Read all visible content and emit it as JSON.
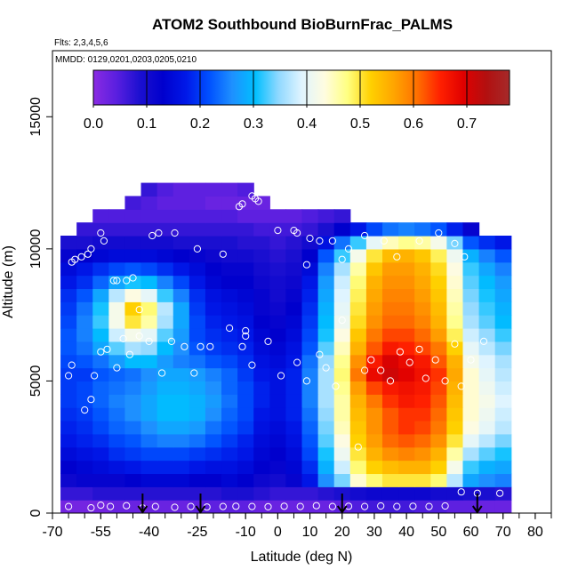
{
  "chart_data": {
    "type": "heatmap",
    "title": "ATOM2 Southbound BioBurnFrac_PALMS",
    "notes": [
      "Flts: 2,3,4,5,6",
      "MMDD: 0129,0201,0203,0205,0210"
    ],
    "xlabel": "Latitude (deg N)",
    "ylabel": "Altitude (m)",
    "xlim": [
      -70,
      85
    ],
    "ylim": [
      0,
      17500
    ],
    "x_ticks": [
      -70,
      -55,
      -40,
      -25,
      -10,
      0,
      10,
      20,
      30,
      40,
      50,
      60,
      70,
      80
    ],
    "y_ticks": [
      0,
      5000,
      10000,
      15000
    ],
    "colorbar": {
      "range": [
        0,
        0.78
      ],
      "ticks": [
        0.0,
        0.1,
        0.2,
        0.3,
        0.4,
        0.5,
        0.6,
        0.7
      ],
      "tick_labels": [
        "0.0",
        "0.1",
        "0.2",
        "0.3",
        "0.4",
        "0.5",
        "0.6",
        "0.7"
      ],
      "colors": [
        "#8a2be2",
        "#5a1fe0",
        "#1c10d0",
        "#0000cd",
        "#0018e8",
        "#0050ff",
        "#1e90ff",
        "#00bfff",
        "#8fd8ff",
        "#dff4ff",
        "#fffce0",
        "#ffff80",
        "#ffd000",
        "#ffa500",
        "#ff7000",
        "#ff2000",
        "#e00000",
        "#b21010",
        "#a52a2a"
      ]
    },
    "lat_grid": [
      -65,
      -60,
      -55,
      -50,
      -45,
      -40,
      -35,
      -30,
      -25,
      -20,
      -15,
      -10,
      -5,
      0,
      5,
      10,
      15,
      20,
      25,
      30,
      35,
      40,
      45,
      50,
      55,
      60,
      65,
      70
    ],
    "alt_grid": [
      250,
      750,
      1250,
      1750,
      2250,
      2750,
      3250,
      3750,
      4250,
      4750,
      5250,
      5750,
      6250,
      6750,
      7250,
      7750,
      8250,
      8750,
      9250,
      9750,
      10250,
      10750,
      11250,
      11750,
      12250
    ],
    "z": [
      [
        0.02,
        0.02,
        0.02,
        0.03,
        0.03,
        0.03,
        0.03,
        0.03,
        0.04,
        0.04,
        0.04,
        0.04,
        0.03,
        0.03,
        0.03,
        0.03,
        0.03,
        0.04,
        0.05,
        0.06,
        0.06,
        0.06,
        0.05,
        0.05,
        0.04,
        0.04,
        0.03,
        0.03
      ],
      [
        0.07,
        0.07,
        0.08,
        0.08,
        0.08,
        0.08,
        0.08,
        0.08,
        0.08,
        0.08,
        0.09,
        0.09,
        0.08,
        0.07,
        0.07,
        0.07,
        0.08,
        0.09,
        0.1,
        0.11,
        0.11,
        0.11,
        0.11,
        0.1,
        0.1,
        0.09,
        0.09,
        0.08
      ],
      [
        0.11,
        0.12,
        0.12,
        0.12,
        0.13,
        0.14,
        0.14,
        0.14,
        0.13,
        0.13,
        0.14,
        0.13,
        0.11,
        0.1,
        0.12,
        0.17,
        0.26,
        0.34,
        0.44,
        0.48,
        0.5,
        0.5,
        0.5,
        0.48,
        0.37,
        0.28,
        0.26,
        0.25
      ],
      [
        0.13,
        0.14,
        0.15,
        0.16,
        0.17,
        0.18,
        0.18,
        0.18,
        0.17,
        0.16,
        0.16,
        0.15,
        0.13,
        0.12,
        0.14,
        0.19,
        0.29,
        0.38,
        0.48,
        0.52,
        0.54,
        0.55,
        0.55,
        0.52,
        0.42,
        0.32,
        0.29,
        0.28
      ],
      [
        0.15,
        0.16,
        0.17,
        0.19,
        0.2,
        0.21,
        0.21,
        0.21,
        0.2,
        0.19,
        0.18,
        0.17,
        0.14,
        0.13,
        0.15,
        0.21,
        0.31,
        0.41,
        0.5,
        0.55,
        0.58,
        0.59,
        0.58,
        0.55,
        0.46,
        0.36,
        0.33,
        0.31
      ],
      [
        0.17,
        0.18,
        0.19,
        0.21,
        0.22,
        0.24,
        0.25,
        0.25,
        0.24,
        0.22,
        0.2,
        0.18,
        0.15,
        0.14,
        0.16,
        0.22,
        0.33,
        0.43,
        0.52,
        0.57,
        0.61,
        0.62,
        0.61,
        0.58,
        0.5,
        0.4,
        0.37,
        0.34
      ],
      [
        0.18,
        0.19,
        0.21,
        0.23,
        0.24,
        0.26,
        0.28,
        0.28,
        0.27,
        0.24,
        0.22,
        0.2,
        0.16,
        0.15,
        0.17,
        0.23,
        0.34,
        0.45,
        0.53,
        0.58,
        0.62,
        0.64,
        0.63,
        0.6,
        0.52,
        0.43,
        0.4,
        0.37
      ],
      [
        0.19,
        0.2,
        0.22,
        0.24,
        0.26,
        0.28,
        0.3,
        0.3,
        0.29,
        0.26,
        0.23,
        0.21,
        0.17,
        0.16,
        0.18,
        0.24,
        0.35,
        0.46,
        0.54,
        0.58,
        0.62,
        0.64,
        0.64,
        0.61,
        0.53,
        0.44,
        0.41,
        0.38
      ],
      [
        0.2,
        0.21,
        0.23,
        0.25,
        0.26,
        0.28,
        0.3,
        0.3,
        0.29,
        0.27,
        0.24,
        0.21,
        0.18,
        0.16,
        0.18,
        0.25,
        0.36,
        0.46,
        0.55,
        0.6,
        0.64,
        0.66,
        0.65,
        0.62,
        0.54,
        0.44,
        0.42,
        0.39
      ],
      [
        0.2,
        0.21,
        0.23,
        0.24,
        0.25,
        0.27,
        0.29,
        0.29,
        0.28,
        0.26,
        0.23,
        0.21,
        0.18,
        0.16,
        0.18,
        0.25,
        0.36,
        0.47,
        0.57,
        0.63,
        0.66,
        0.67,
        0.66,
        0.63,
        0.55,
        0.44,
        0.41,
        0.38
      ],
      [
        0.2,
        0.2,
        0.22,
        0.23,
        0.24,
        0.26,
        0.28,
        0.28,
        0.27,
        0.25,
        0.23,
        0.2,
        0.17,
        0.16,
        0.18,
        0.25,
        0.36,
        0.48,
        0.6,
        0.68,
        0.71,
        0.69,
        0.67,
        0.64,
        0.56,
        0.44,
        0.4,
        0.37
      ],
      [
        0.21,
        0.22,
        0.24,
        0.27,
        0.3,
        0.3,
        0.27,
        0.25,
        0.24,
        0.22,
        0.21,
        0.19,
        0.16,
        0.15,
        0.17,
        0.24,
        0.35,
        0.47,
        0.58,
        0.66,
        0.7,
        0.68,
        0.66,
        0.62,
        0.55,
        0.42,
        0.39,
        0.36
      ],
      [
        0.22,
        0.24,
        0.28,
        0.33,
        0.36,
        0.35,
        0.3,
        0.26,
        0.22,
        0.2,
        0.19,
        0.18,
        0.15,
        0.14,
        0.16,
        0.22,
        0.33,
        0.45,
        0.55,
        0.62,
        0.66,
        0.65,
        0.63,
        0.6,
        0.52,
        0.4,
        0.37,
        0.34
      ],
      [
        0.22,
        0.25,
        0.3,
        0.38,
        0.42,
        0.4,
        0.33,
        0.27,
        0.21,
        0.19,
        0.18,
        0.17,
        0.14,
        0.13,
        0.15,
        0.21,
        0.31,
        0.43,
        0.53,
        0.6,
        0.63,
        0.63,
        0.61,
        0.57,
        0.49,
        0.38,
        0.35,
        0.32
      ],
      [
        0.21,
        0.25,
        0.32,
        0.42,
        0.5,
        0.46,
        0.36,
        0.28,
        0.21,
        0.18,
        0.17,
        0.16,
        0.13,
        0.12,
        0.14,
        0.2,
        0.3,
        0.41,
        0.51,
        0.58,
        0.61,
        0.61,
        0.59,
        0.55,
        0.47,
        0.36,
        0.33,
        0.3
      ],
      [
        0.2,
        0.24,
        0.31,
        0.42,
        0.52,
        0.48,
        0.37,
        0.28,
        0.2,
        0.17,
        0.16,
        0.15,
        0.12,
        0.11,
        0.13,
        0.19,
        0.29,
        0.4,
        0.5,
        0.57,
        0.6,
        0.6,
        0.58,
        0.54,
        0.46,
        0.35,
        0.32,
        0.29
      ],
      [
        0.19,
        0.22,
        0.28,
        0.37,
        0.43,
        0.4,
        0.32,
        0.25,
        0.19,
        0.16,
        0.15,
        0.14,
        0.12,
        0.1,
        0.12,
        0.18,
        0.28,
        0.39,
        0.49,
        0.56,
        0.59,
        0.59,
        0.57,
        0.53,
        0.45,
        0.34,
        0.31,
        0.28
      ],
      [
        0.17,
        0.19,
        0.23,
        0.28,
        0.31,
        0.3,
        0.25,
        0.21,
        0.17,
        0.14,
        0.13,
        0.13,
        0.11,
        0.1,
        0.11,
        0.17,
        0.27,
        0.38,
        0.48,
        0.55,
        0.58,
        0.58,
        0.56,
        0.52,
        0.44,
        0.33,
        0.3,
        0.27
      ],
      [
        0.15,
        0.17,
        0.19,
        0.21,
        0.22,
        0.21,
        0.19,
        0.17,
        0.15,
        0.13,
        0.12,
        0.12,
        0.1,
        0.09,
        0.1,
        0.15,
        0.25,
        0.36,
        0.46,
        0.53,
        0.57,
        0.57,
        0.55,
        0.51,
        0.43,
        0.32,
        0.28,
        0.25
      ],
      [
        0.12,
        0.13,
        0.14,
        0.15,
        0.15,
        0.15,
        0.14,
        0.13,
        0.12,
        0.11,
        0.1,
        0.1,
        0.09,
        0.08,
        0.09,
        0.13,
        0.22,
        0.32,
        0.42,
        0.5,
        0.54,
        0.55,
        0.53,
        0.49,
        0.41,
        0.29,
        0.25,
        0.22
      ],
      [
        0.09,
        0.09,
        0.1,
        0.1,
        0.1,
        0.1,
        0.1,
        0.09,
        0.09,
        0.09,
        0.09,
        0.08,
        0.08,
        0.07,
        0.08,
        0.1,
        0.16,
        0.24,
        0.32,
        0.4,
        0.45,
        0.47,
        0.46,
        0.42,
        0.34,
        0.22,
        0.19,
        0.17
      ],
      [
        null,
        0.07,
        0.07,
        0.07,
        0.07,
        0.07,
        0.07,
        0.07,
        0.07,
        0.07,
        0.07,
        0.07,
        0.06,
        0.06,
        0.06,
        0.07,
        0.09,
        0.13,
        0.17,
        0.21,
        0.24,
        0.25,
        0.24,
        0.22,
        0.18,
        0.12,
        null,
        null
      ],
      [
        null,
        null,
        0.05,
        0.05,
        0.05,
        0.05,
        0.05,
        0.05,
        0.05,
        0.05,
        0.05,
        0.04,
        0.04,
        0.04,
        0.04,
        0.05,
        0.06,
        0.07,
        null,
        null,
        null,
        null,
        null,
        null,
        null,
        null,
        null,
        null
      ],
      [
        null,
        null,
        null,
        null,
        0.06,
        0.05,
        0.04,
        0.04,
        0.04,
        0.03,
        0.03,
        0.03,
        0.03,
        null,
        null,
        null,
        null,
        null,
        null,
        null,
        null,
        null,
        null,
        null,
        null,
        null,
        null,
        null
      ],
      [
        null,
        null,
        null,
        null,
        null,
        0.07,
        0.05,
        0.04,
        0.04,
        0.04,
        0.04,
        0.05,
        null,
        null,
        null,
        null,
        null,
        null,
        null,
        null,
        null,
        null,
        null,
        null,
        null,
        null,
        null,
        null
      ]
    ],
    "sample_points": [
      [
        -65,
        250
      ],
      [
        -58,
        200
      ],
      [
        -55,
        300
      ],
      [
        -52,
        250
      ],
      [
        -47,
        280
      ],
      [
        -42,
        200
      ],
      [
        -38,
        250
      ],
      [
        -32,
        220
      ],
      [
        -27,
        250
      ],
      [
        -22,
        230
      ],
      [
        -17,
        250
      ],
      [
        -13,
        260
      ],
      [
        -8,
        250
      ],
      [
        -3,
        240
      ],
      [
        2,
        260
      ],
      [
        7,
        250
      ],
      [
        12,
        280
      ],
      [
        17,
        250
      ],
      [
        22,
        260
      ],
      [
        27,
        250
      ],
      [
        32,
        270
      ],
      [
        37,
        250
      ],
      [
        42,
        260
      ],
      [
        47,
        250
      ],
      [
        52,
        270
      ],
      [
        57,
        800
      ],
      [
        62,
        750
      ],
      [
        69,
        750
      ],
      [
        -65,
        5200
      ],
      [
        -64,
        5600
      ],
      [
        -60,
        3900
      ],
      [
        -58,
        4300
      ],
      [
        -57,
        5200
      ],
      [
        -55,
        6100
      ],
      [
        -53,
        6200
      ],
      [
        -50,
        5500
      ],
      [
        -48,
        6600
      ],
      [
        -46,
        6000
      ],
      [
        -43,
        6700
      ],
      [
        -40,
        6500
      ],
      [
        -36,
        5300
      ],
      [
        -33,
        6500
      ],
      [
        -29,
        6300
      ],
      [
        -26,
        5300
      ],
      [
        -24,
        6300
      ],
      [
        -21,
        6300
      ],
      [
        -15,
        7000
      ],
      [
        -11,
        6300
      ],
      [
        -10,
        6900
      ],
      [
        -10,
        6700
      ],
      [
        -8,
        5600
      ],
      [
        -3,
        6500
      ],
      [
        1,
        5200
      ],
      [
        6,
        5700
      ],
      [
        9,
        5000
      ],
      [
        13,
        6000
      ],
      [
        15,
        5500
      ],
      [
        18,
        4800
      ],
      [
        20,
        7300
      ],
      [
        25,
        2500
      ],
      [
        27,
        5400
      ],
      [
        29,
        5800
      ],
      [
        32,
        5400
      ],
      [
        35,
        5000
      ],
      [
        38,
        6100
      ],
      [
        41,
        5700
      ],
      [
        44,
        6200
      ],
      [
        46,
        5100
      ],
      [
        49,
        5800
      ],
      [
        52,
        5000
      ],
      [
        55,
        6400
      ],
      [
        57,
        4800
      ],
      [
        60,
        5800
      ],
      [
        64,
        6500
      ],
      [
        -64,
        9500
      ],
      [
        -63,
        9600
      ],
      [
        -61,
        9700
      ],
      [
        -59,
        9800
      ],
      [
        -58,
        10000
      ],
      [
        -55,
        10600
      ],
      [
        -54,
        10300
      ],
      [
        -51,
        8800
      ],
      [
        -50,
        8800
      ],
      [
        -47,
        8800
      ],
      [
        -45,
        8900
      ],
      [
        -43,
        7700
      ],
      [
        -39,
        10500
      ],
      [
        -37,
        10600
      ],
      [
        -32,
        10600
      ],
      [
        -25,
        10000
      ],
      [
        -17,
        9800
      ],
      [
        -12,
        11600
      ],
      [
        -11,
        11700
      ],
      [
        -8,
        12000
      ],
      [
        -7,
        11900
      ],
      [
        -6,
        11800
      ],
      [
        0,
        10700
      ],
      [
        5,
        10700
      ],
      [
        6,
        10600
      ],
      [
        9,
        9400
      ],
      [
        10,
        10400
      ],
      [
        13,
        10300
      ],
      [
        17,
        10300
      ],
      [
        20,
        9600
      ],
      [
        22,
        10000
      ],
      [
        27,
        10500
      ],
      [
        33,
        10300
      ],
      [
        37,
        9700
      ],
      [
        44,
        10300
      ],
      [
        50,
        10600
      ],
      [
        55,
        10200
      ],
      [
        58,
        9700
      ],
      [
        63,
        11300
      ],
      [
        66,
        11200
      ],
      [
        -60,
        11800
      ],
      [
        -56,
        12000
      ],
      [
        -53,
        12200
      ]
    ],
    "flight_markers": [
      -42,
      -24,
      20,
      62
    ]
  }
}
